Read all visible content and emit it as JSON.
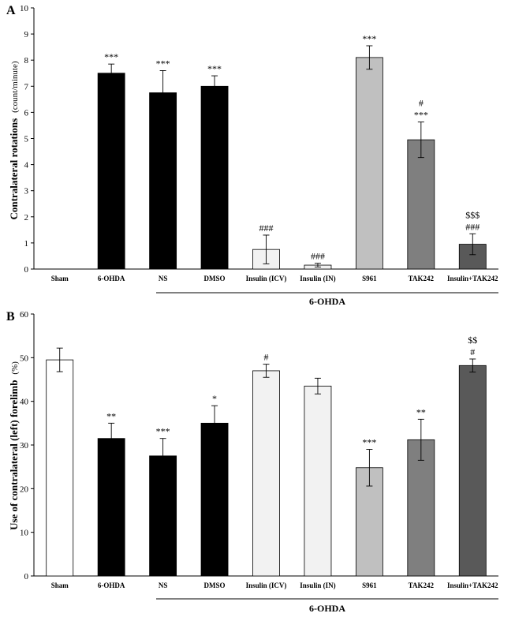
{
  "chart_data": [
    {
      "panel": "A",
      "type": "bar",
      "ylabel_bold": "Contralateral rotations",
      "ylabel_unit": "(count/minute)",
      "ylim": [
        0,
        10
      ],
      "yticks": [
        0,
        1,
        2,
        3,
        4,
        5,
        6,
        7,
        8,
        9,
        10
      ],
      "categories": [
        "Sham",
        "6-OHDA",
        "NS",
        "DMSO",
        "Insulin (ICV)",
        "Insulin (IN)",
        "S961",
        "TAK242",
        "Insulin+TAK242"
      ],
      "values": [
        0,
        7.5,
        6.75,
        7.0,
        0.75,
        0.15,
        8.1,
        4.95,
        0.95
      ],
      "errors": [
        0,
        0.35,
        0.85,
        0.4,
        0.55,
        0.07,
        0.45,
        0.68,
        0.4
      ],
      "fills": [
        "#ffffff",
        "#000000",
        "#000000",
        "#000000",
        "#f2f2f2",
        "#f2f2f2",
        "#c0c0c0",
        "#7f7f7f",
        "#595959"
      ],
      "annotations": [
        [],
        [
          "***"
        ],
        [
          "***"
        ],
        [
          "***"
        ],
        [
          "###"
        ],
        [
          "###"
        ],
        [
          "***"
        ],
        [
          "#",
          "***"
        ],
        [
          "$$$",
          "###"
        ]
      ],
      "group_label": "6-OHDA"
    },
    {
      "panel": "B",
      "type": "bar",
      "ylabel_bold": "Use of contralateral (left) forelimb",
      "ylabel_unit": "(%)",
      "ylim": [
        0,
        60
      ],
      "yticks": [
        0,
        10,
        20,
        30,
        40,
        50,
        60
      ],
      "categories": [
        "Sham",
        "6-OHDA",
        "NS",
        "DMSO",
        "Insulin (ICV)",
        "Insulin (IN)",
        "S961",
        "TAK242",
        "Insulin+TAK242"
      ],
      "values": [
        49.5,
        31.5,
        27.5,
        35.0,
        47.0,
        43.5,
        24.8,
        31.2,
        48.2
      ],
      "errors": [
        2.7,
        3.5,
        4.0,
        4.0,
        1.5,
        1.8,
        4.2,
        4.7,
        1.5
      ],
      "fills": [
        "#ffffff",
        "#000000",
        "#000000",
        "#000000",
        "#f2f2f2",
        "#f2f2f2",
        "#c0c0c0",
        "#7f7f7f",
        "#595959"
      ],
      "annotations": [
        [],
        [
          "**"
        ],
        [
          "***"
        ],
        [
          "*"
        ],
        [
          "#"
        ],
        [],
        [
          "***"
        ],
        [
          "**"
        ],
        [
          "$$",
          "#"
        ]
      ],
      "group_label": "6-OHDA"
    }
  ]
}
